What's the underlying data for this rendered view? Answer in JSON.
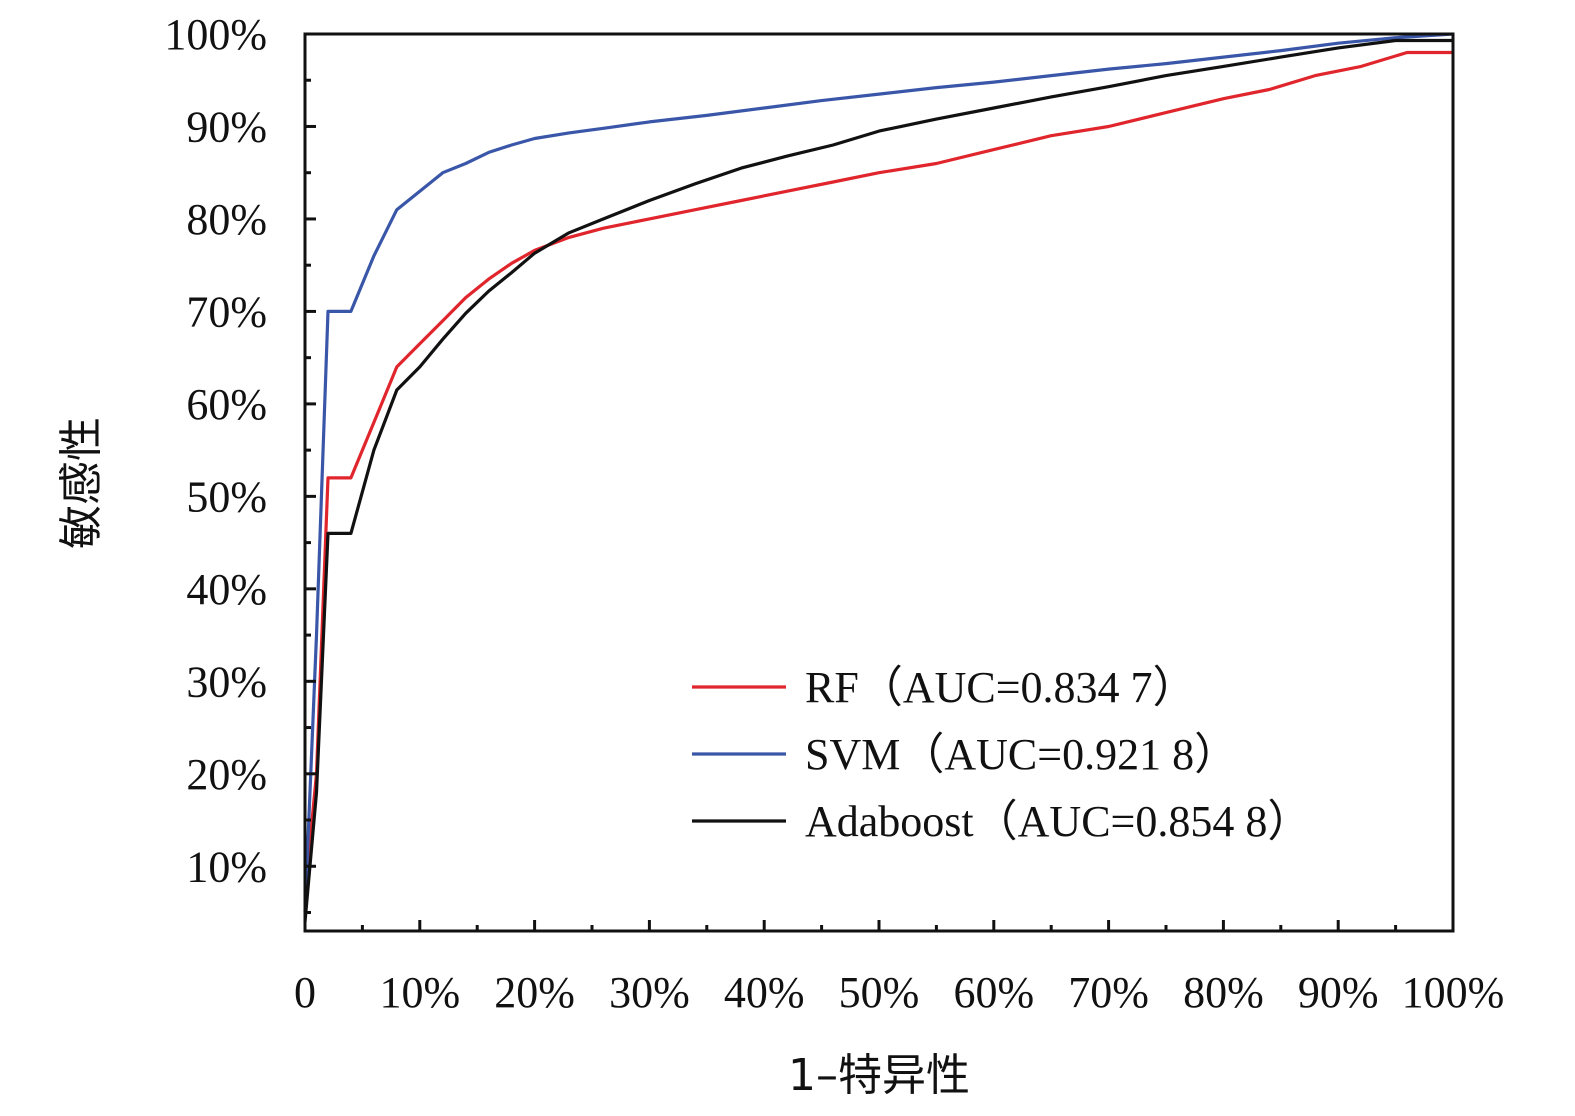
{
  "chart_data": {
    "type": "line",
    "xlabel": "1–特异性",
    "ylabel": "敏感性",
    "xlim": [
      0,
      1
    ],
    "ylim": [
      0.03,
      1.0
    ],
    "x_ticks": [
      {
        "value": 0,
        "label": "0"
      },
      {
        "value": 0.1,
        "label": "10%"
      },
      {
        "value": 0.2,
        "label": "20%"
      },
      {
        "value": 0.3,
        "label": "30%"
      },
      {
        "value": 0.4,
        "label": "40%"
      },
      {
        "value": 0.5,
        "label": "50%"
      },
      {
        "value": 0.6,
        "label": "60%"
      },
      {
        "value": 0.7,
        "label": "70%"
      },
      {
        "value": 0.8,
        "label": "80%"
      },
      {
        "value": 0.9,
        "label": "90%"
      },
      {
        "value": 1.0,
        "label": "100%"
      }
    ],
    "y_ticks": [
      {
        "value": 0.1,
        "label": "10%"
      },
      {
        "value": 0.2,
        "label": "20%"
      },
      {
        "value": 0.3,
        "label": "30%"
      },
      {
        "value": 0.4,
        "label": "40%"
      },
      {
        "value": 0.5,
        "label": "50%"
      },
      {
        "value": 0.6,
        "label": "60%"
      },
      {
        "value": 0.7,
        "label": "70%"
      },
      {
        "value": 0.8,
        "label": "80%"
      },
      {
        "value": 0.9,
        "label": "90%"
      },
      {
        "value": 1.0,
        "label": "100%"
      }
    ],
    "grid": false,
    "legend_position": "bottom-right",
    "series": [
      {
        "name": "RF（AUC=0.834 7）",
        "color": "#e0262c",
        "points": [
          [
            0,
            0.07
          ],
          [
            0.01,
            0.2
          ],
          [
            0.02,
            0.52
          ],
          [
            0.04,
            0.52
          ],
          [
            0.06,
            0.58
          ],
          [
            0.08,
            0.64
          ],
          [
            0.1,
            0.665
          ],
          [
            0.12,
            0.69
          ],
          [
            0.14,
            0.715
          ],
          [
            0.16,
            0.735
          ],
          [
            0.18,
            0.752
          ],
          [
            0.2,
            0.766
          ],
          [
            0.23,
            0.78
          ],
          [
            0.26,
            0.79
          ],
          [
            0.3,
            0.8
          ],
          [
            0.34,
            0.81
          ],
          [
            0.38,
            0.82
          ],
          [
            0.42,
            0.83
          ],
          [
            0.46,
            0.84
          ],
          [
            0.5,
            0.85
          ],
          [
            0.55,
            0.86
          ],
          [
            0.6,
            0.875
          ],
          [
            0.65,
            0.89
          ],
          [
            0.7,
            0.9
          ],
          [
            0.75,
            0.915
          ],
          [
            0.8,
            0.93
          ],
          [
            0.84,
            0.94
          ],
          [
            0.88,
            0.955
          ],
          [
            0.92,
            0.965
          ],
          [
            0.96,
            0.98
          ],
          [
            1.0,
            0.98
          ]
        ]
      },
      {
        "name": "SVM（AUC=0.921 8）",
        "color": "#3a56a8",
        "points": [
          [
            0,
            0.05
          ],
          [
            0.01,
            0.35
          ],
          [
            0.02,
            0.7
          ],
          [
            0.04,
            0.7
          ],
          [
            0.06,
            0.76
          ],
          [
            0.08,
            0.81
          ],
          [
            0.1,
            0.83
          ],
          [
            0.12,
            0.85
          ],
          [
            0.14,
            0.86
          ],
          [
            0.16,
            0.872
          ],
          [
            0.18,
            0.88
          ],
          [
            0.2,
            0.887
          ],
          [
            0.23,
            0.893
          ],
          [
            0.26,
            0.898
          ],
          [
            0.3,
            0.905
          ],
          [
            0.35,
            0.912
          ],
          [
            0.4,
            0.92
          ],
          [
            0.45,
            0.928
          ],
          [
            0.5,
            0.935
          ],
          [
            0.55,
            0.942
          ],
          [
            0.6,
            0.948
          ],
          [
            0.65,
            0.955
          ],
          [
            0.7,
            0.962
          ],
          [
            0.75,
            0.968
          ],
          [
            0.8,
            0.975
          ],
          [
            0.85,
            0.982
          ],
          [
            0.9,
            0.99
          ],
          [
            0.95,
            0.996
          ],
          [
            1.0,
            1.0
          ]
        ]
      },
      {
        "name": "Adaboost（AUC=0.854 8）",
        "color": "#111111",
        "points": [
          [
            0,
            0.04
          ],
          [
            0.01,
            0.18
          ],
          [
            0.02,
            0.46
          ],
          [
            0.04,
            0.46
          ],
          [
            0.06,
            0.55
          ],
          [
            0.08,
            0.615
          ],
          [
            0.1,
            0.64
          ],
          [
            0.12,
            0.67
          ],
          [
            0.14,
            0.698
          ],
          [
            0.16,
            0.722
          ],
          [
            0.18,
            0.742
          ],
          [
            0.2,
            0.763
          ],
          [
            0.23,
            0.785
          ],
          [
            0.26,
            0.8
          ],
          [
            0.3,
            0.82
          ],
          [
            0.34,
            0.838
          ],
          [
            0.38,
            0.855
          ],
          [
            0.42,
            0.868
          ],
          [
            0.46,
            0.88
          ],
          [
            0.5,
            0.895
          ],
          [
            0.55,
            0.908
          ],
          [
            0.6,
            0.92
          ],
          [
            0.65,
            0.932
          ],
          [
            0.7,
            0.943
          ],
          [
            0.75,
            0.955
          ],
          [
            0.8,
            0.965
          ],
          [
            0.85,
            0.975
          ],
          [
            0.9,
            0.985
          ],
          [
            0.95,
            0.993
          ],
          [
            1.0,
            0.993
          ]
        ]
      }
    ]
  }
}
